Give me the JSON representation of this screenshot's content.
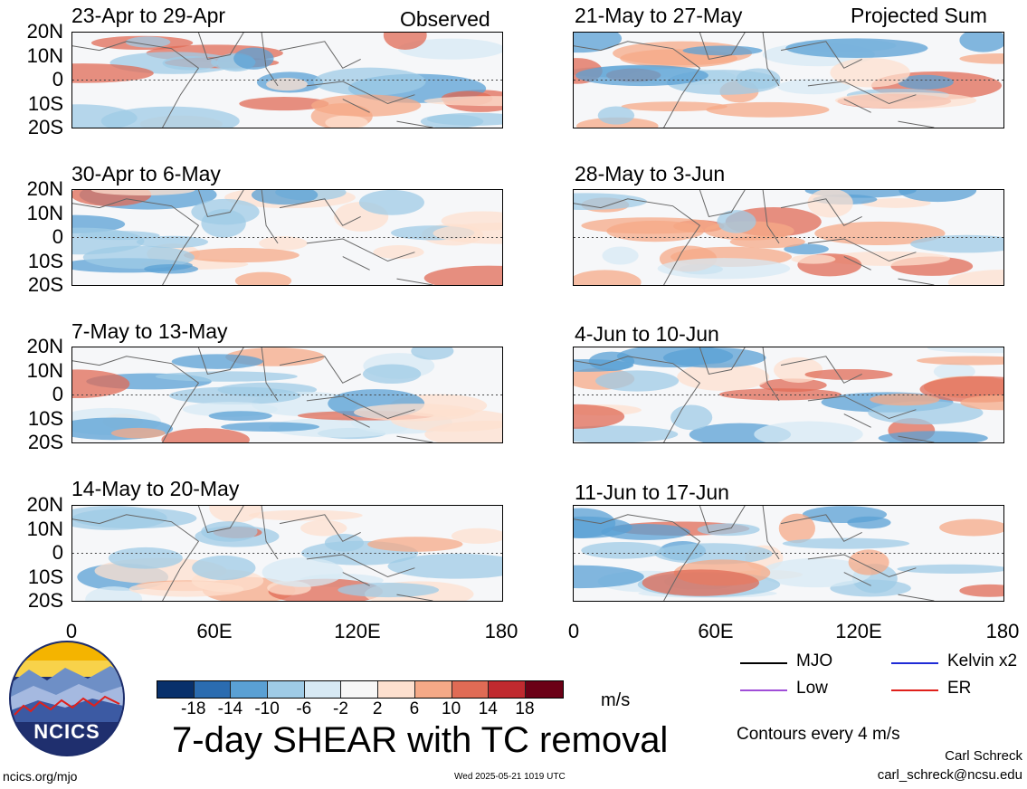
{
  "panels_left": [
    {
      "title": "23-Apr to 29-Apr",
      "label": "Observed"
    },
    {
      "title": "30-Apr to 6-May",
      "label": ""
    },
    {
      "title": "7-May to 13-May",
      "label": ""
    },
    {
      "title": "14-May to 20-May",
      "label": ""
    }
  ],
  "panels_right": [
    {
      "title": "21-May to 27-May",
      "label": "Projected Sum"
    },
    {
      "title": "28-May to 3-Jun",
      "label": ""
    },
    {
      "title": "4-Jun to 10-Jun",
      "label": ""
    },
    {
      "title": "11-Jun to 17-Jun",
      "label": ""
    }
  ],
  "y_ticks": [
    "20N",
    "10N",
    "0",
    "10S",
    "20S"
  ],
  "x_ticks": [
    "0",
    "60E",
    "120E",
    "180"
  ],
  "colorbar": {
    "colors": [
      "#08306b",
      "#2b6cb0",
      "#5aa0d4",
      "#9fcbe6",
      "#d7e9f4",
      "#f7f7f7",
      "#fde0cf",
      "#f5a987",
      "#e06b55",
      "#c02a2f",
      "#6b0016"
    ],
    "ticks": [
      "-18",
      "-14",
      "-10",
      "-6",
      "-2",
      "2",
      "6",
      "10",
      "14",
      "18"
    ],
    "unit": "m/s"
  },
  "title": "7-day SHEAR with TC removal",
  "legend": [
    {
      "name": "MJO",
      "color": "#000000"
    },
    {
      "name": "Kelvin x2",
      "color": "#1f2bd6"
    },
    {
      "name": "Low",
      "color": "#a04ed8"
    },
    {
      "name": "ER",
      "color": "#e0201b"
    }
  ],
  "contour_note": "Contours every 4 m/s",
  "author": "Carl Schreck",
  "email": "carl_schreck@ncsu.edu",
  "site": "ncics.org/mjo",
  "timestamp": "Wed 2025-05-21 1019 UTC",
  "logo_text": "NCICS"
}
